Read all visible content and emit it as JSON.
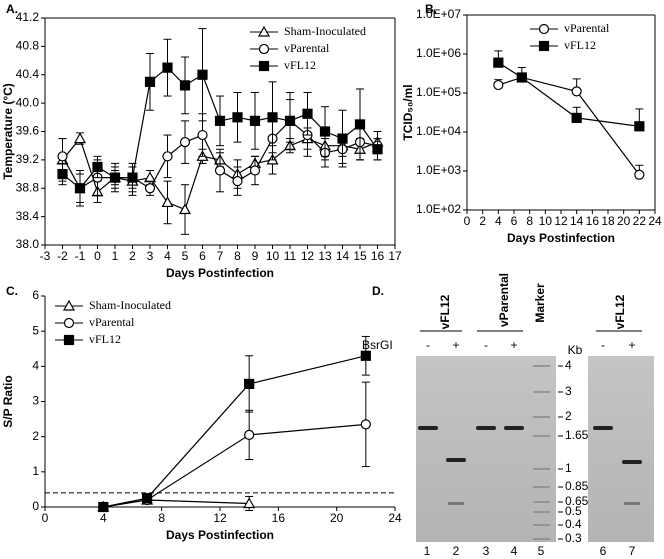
{
  "chart_data": [
    {
      "type": "line",
      "panel": "A.",
      "xlabel": "Days Postinfection",
      "ylabel": "Temperature (°C)",
      "xlim": [
        -3,
        17
      ],
      "xticks": [
        -3,
        -2,
        -1,
        0,
        1,
        2,
        3,
        4,
        5,
        6,
        7,
        8,
        9,
        10,
        11,
        12,
        13,
        14,
        15,
        16,
        17
      ],
      "ylim": [
        38.0,
        41.2
      ],
      "yticks": [
        {
          "value": 38.0,
          "label": "38.0"
        },
        38.4,
        38.8,
        39.2,
        39.6,
        {
          "value": 40.0,
          "label": "40.0"
        },
        40.4,
        40.8,
        41.2
      ],
      "frame": true,
      "legend": "upper right",
      "series": [
        {
          "name": "Sham-Inoculated",
          "marker": "triangle-open",
          "color": "#000000",
          "x": [
            -2,
            -1,
            0,
            1,
            2,
            3,
            4,
            5,
            6,
            7,
            8,
            9,
            10,
            11,
            12,
            13,
            14,
            15,
            16
          ],
          "values": [
            39.2,
            39.5,
            38.75,
            38.95,
            38.9,
            38.95,
            38.6,
            38.5,
            39.25,
            39.2,
            39.0,
            39.15,
            39.2,
            39.4,
            39.5,
            39.4,
            39.4,
            39.35,
            39.45
          ],
          "errors": [
            0.3,
            0.08,
            0.15,
            0.1,
            0.2,
            0.1,
            0.3,
            0.35,
            0.1,
            0.1,
            0.2,
            0.1,
            0.2,
            0.1,
            0.15,
            0.2,
            0.15,
            0.15,
            0.15
          ]
        },
        {
          "name": "vParental",
          "marker": "circle-open",
          "color": "#000000",
          "x": [
            -2,
            -1,
            0,
            1,
            2,
            3,
            4,
            5,
            6,
            7,
            8,
            9,
            10,
            11,
            12,
            13,
            14,
            15,
            16
          ],
          "values": [
            39.25,
            38.8,
            38.95,
            38.95,
            38.95,
            38.8,
            39.25,
            39.45,
            39.55,
            39.05,
            38.9,
            39.05,
            39.5,
            39.75,
            39.55,
            39.3,
            39.35,
            39.45,
            39.4
          ],
          "errors": [
            0.25,
            0.2,
            0.25,
            0.2,
            0.2,
            0.1,
            0.3,
            0.3,
            0.3,
            0.3,
            0.2,
            0.2,
            0.3,
            0.3,
            0.3,
            0.2,
            0.2,
            0.25,
            0.2
          ]
        },
        {
          "name": "vFL12",
          "marker": "square-filled",
          "color": "#000000",
          "x": [
            -2,
            -1,
            0,
            1,
            2,
            3,
            4,
            5,
            6,
            7,
            8,
            9,
            10,
            11,
            12,
            13,
            14,
            15,
            16
          ],
          "values": [
            39.0,
            38.8,
            39.1,
            38.95,
            38.95,
            40.3,
            40.5,
            40.25,
            40.4,
            39.75,
            39.8,
            39.75,
            39.8,
            39.75,
            39.85,
            39.6,
            39.5,
            39.7,
            39.35
          ],
          "errors": [
            0.15,
            0.25,
            0.15,
            0.15,
            0.15,
            0.4,
            0.4,
            0.4,
            0.65,
            0.35,
            0.35,
            0.4,
            0.5,
            0.4,
            0.3,
            0.35,
            0.4,
            0.5,
            0.15
          ]
        }
      ]
    },
    {
      "type": "line",
      "panel": "B.",
      "xlabel": "Days Postinfection",
      "ylabel": "TCID₅₀/ml",
      "xlim": [
        0,
        24
      ],
      "xticks": [
        0,
        2,
        4,
        6,
        8,
        10,
        12,
        14,
        16,
        18,
        20,
        22,
        24
      ],
      "ylim": [
        100,
        10000000
      ],
      "yscale": "log",
      "yticks": [
        {
          "value": 100,
          "label": "1.0E+02"
        },
        {
          "value": 1000,
          "label": "1.0E+03"
        },
        {
          "value": 10000,
          "label": "1.0E+04"
        },
        {
          "value": 100000,
          "label": "1.0E+05"
        },
        {
          "value": 1000000,
          "label": "1.0E+06"
        },
        {
          "value": 10000000,
          "label": "1.0E+07"
        }
      ],
      "frame": true,
      "legend": "upper right",
      "error_direction": "up",
      "series": [
        {
          "name": "vParental",
          "marker": "circle-open",
          "color": "#000000",
          "x": [
            4,
            7,
            14,
            22
          ],
          "values": [
            160000,
            250000,
            110000,
            800
          ],
          "errors": [
            60000,
            50000,
            120000,
            600
          ]
        },
        {
          "name": "vFL12",
          "marker": "square-filled",
          "color": "#000000",
          "x": [
            4,
            7,
            14,
            22
          ],
          "values": [
            600000,
            250000,
            23000,
            14000
          ],
          "errors": [
            600000,
            200000,
            20000,
            25000
          ]
        }
      ]
    },
    {
      "type": "line",
      "panel": "C.",
      "xlabel": "Days Postinfection",
      "ylabel": "S/P Ratio",
      "xlim": [
        0,
        24
      ],
      "xticks": [
        0,
        4,
        8,
        12,
        16,
        20,
        24
      ],
      "ylim": [
        0,
        6
      ],
      "yticks": [
        0,
        1,
        2,
        3,
        4,
        5,
        6
      ],
      "frame": false,
      "legend": "upper left",
      "hline": 0.4,
      "series": [
        {
          "name": "Sham-Inoculated",
          "marker": "triangle-open",
          "color": "#000000",
          "x": [
            4,
            7,
            14
          ],
          "values": [
            0,
            0.2,
            0.1
          ],
          "errors": [
            0,
            0.05,
            0.2
          ]
        },
        {
          "name": "vParental",
          "marker": "circle-open",
          "color": "#000000",
          "x": [
            4,
            7,
            14,
            22
          ],
          "values": [
            0,
            0.2,
            2.05,
            2.35
          ],
          "errors": [
            0,
            0.05,
            0.7,
            1.2
          ]
        },
        {
          "name": "vFL12",
          "marker": "square-filled",
          "color": "#000000",
          "x": [
            4,
            7,
            14,
            22
          ],
          "values": [
            0,
            0.25,
            3.5,
            4.3
          ],
          "errors": [
            0,
            0.05,
            0.8,
            0.55
          ]
        }
      ]
    }
  ],
  "gel": {
    "panel": "D.",
    "groups": [
      "vFL12",
      "vParental",
      "Marker",
      "vFL12"
    ],
    "enzyme": "BsrGI",
    "treatments": [
      "-",
      "+",
      "-",
      "+",
      "-",
      "+"
    ],
    "size_unit": "Kb",
    "marker_sizes": [
      "4",
      "3",
      "2",
      "1.65",
      "1",
      "0.85",
      "0.65",
      "0.5",
      "0.4",
      "0.3"
    ],
    "lanes": [
      "1",
      "2",
      "3",
      "4",
      "5",
      "6",
      "7"
    ]
  }
}
